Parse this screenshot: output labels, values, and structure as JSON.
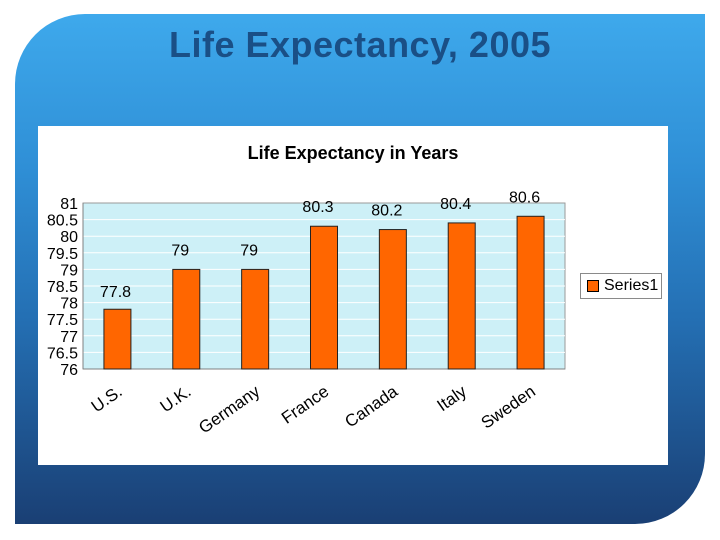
{
  "slide": {
    "title": "Life Expectancy, 2005"
  },
  "colors": {
    "bar": "#ff6600",
    "plot_bg": "#cdf0f7",
    "grid": "#ffffff"
  },
  "chart_data": {
    "type": "bar",
    "title": "Life Expectancy in Years",
    "xlabel": "",
    "ylabel": "",
    "categories": [
      "U.S.",
      "U.K.",
      "Germany",
      "France",
      "Canada",
      "Italy",
      "Sweden"
    ],
    "series": [
      {
        "name": "Series1",
        "values": [
          77.8,
          79,
          79,
          80.3,
          80.2,
          80.4,
          80.6
        ]
      }
    ],
    "data_labels": [
      "77.8",
      "79",
      "79",
      "80.3",
      "80.2",
      "80.4",
      "80.6"
    ],
    "ylim": [
      76,
      81
    ],
    "ytick_labels": [
      "76",
      "76.5",
      "77",
      "77.5",
      "78",
      "78.5",
      "79",
      "79.5",
      "80",
      "80.5",
      "81"
    ],
    "grid": true,
    "legend": "right"
  }
}
